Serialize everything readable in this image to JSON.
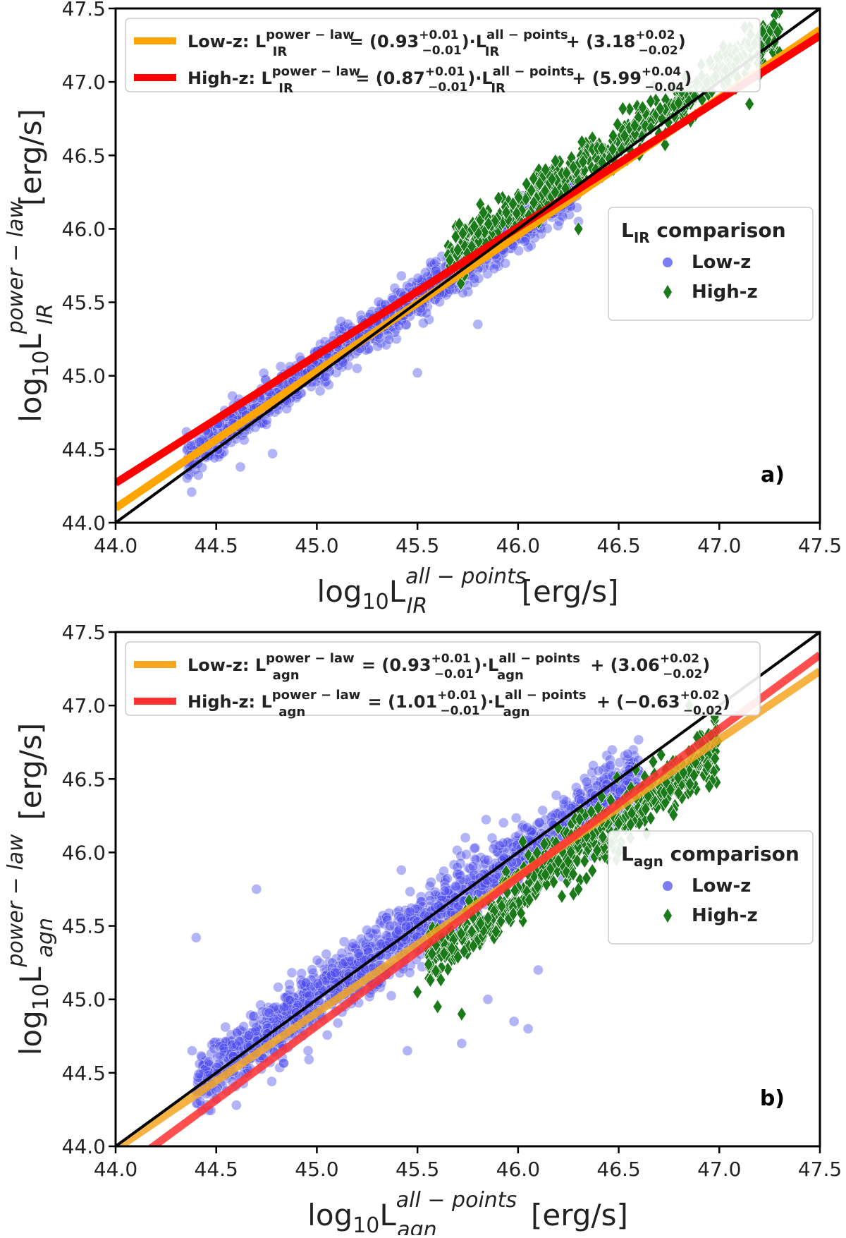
{
  "chart_data": [
    {
      "type": "scatter",
      "panel_label": "a)",
      "xlabel": {
        "base": "log",
        "sub": "10",
        "L": "L",
        "sup": "all − points",
        "var": "IR",
        "unit": "[erg/s]"
      },
      "ylabel": {
        "base": "log",
        "sub": "10",
        "L": "L",
        "sup": "power − law",
        "var": "IR",
        "unit": "[erg/s]"
      },
      "xlim": [
        44.0,
        47.5
      ],
      "ylim": [
        44.0,
        47.5
      ],
      "xticks": [
        "44.0",
        "44.5",
        "45.0",
        "45.5",
        "46.0",
        "46.5",
        "47.0",
        "47.5"
      ],
      "yticks": [
        "44.0",
        "44.5",
        "45.0",
        "45.5",
        "46.0",
        "46.5",
        "47.0",
        "47.5"
      ],
      "grid": false,
      "fit_legend": [
        {
          "name": "Low-z",
          "color": "#ffa500",
          "label_prefix": "Low-z: L",
          "label_sup": "power − law",
          "label_sub": "IR",
          "label_mid": " = (0.93",
          "slope_err_up": "+0.01",
          "slope_err_down": "−0.01",
          "label_mid2": ")·L",
          "label_sup2": "all − points",
          "label_sub2": "IR",
          "label_tail": " + (3.18",
          "int_err_up": "+0.02",
          "int_err_down": "−0.02",
          "label_end": ")",
          "slope": 0.93,
          "intercept": 3.18
        },
        {
          "name": "High-z",
          "color": "#ff0000",
          "label_prefix": "High-z: L",
          "label_sup": "power − law",
          "label_sub": "IR",
          "label_mid": " = (0.87",
          "slope_err_up": "+0.01",
          "slope_err_down": "−0.01",
          "label_mid2": ")·L",
          "label_sup2": "all − points",
          "label_sub2": "IR",
          "label_tail": " + (5.99",
          "int_err_up": "+0.04",
          "int_err_down": "−0.04",
          "label_end": ")",
          "slope": 0.87,
          "intercept": 5.99
        }
      ],
      "one_to_one": {
        "color": "#000000"
      },
      "point_legend": {
        "title_L": "L",
        "title_sub": "IR",
        "title_rest": " comparison",
        "placement": "center-right",
        "entries": [
          {
            "name": "Low-z",
            "marker": "circle",
            "color": "#4444ee"
          },
          {
            "name": "High-z",
            "marker": "diamond",
            "color": "#1a7a1a"
          }
        ]
      },
      "series": [
        {
          "name": "Low-z",
          "marker": "circle",
          "color": "#4a4aee",
          "count": 1400,
          "x_range": [
            44.35,
            46.3
          ],
          "relation": {
            "slope": 0.96,
            "intercept": 1.85
          },
          "scatter_sd": 0.07,
          "outliers": [
            [
              45.42,
              45.68
            ],
            [
              45.12,
              45.37
            ],
            [
              44.78,
              44.47
            ],
            [
              45.8,
              45.35
            ],
            [
              45.5,
              45.02
            ],
            [
              44.62,
              44.38
            ],
            [
              46.3,
              46.05
            ],
            [
              45.2,
              45.05
            ]
          ]
        },
        {
          "name": "High-z",
          "marker": "diamond",
          "color": "#1a7a1a",
          "count": 520,
          "x_range": [
            45.65,
            47.3
          ],
          "relation": {
            "slope": 0.9,
            "intercept": 4.75
          },
          "scatter_sd": 0.08,
          "outliers": [
            [
              47.15,
              46.85
            ],
            [
              47.3,
              47.2
            ],
            [
              46.3,
              46.0
            ]
          ]
        }
      ]
    },
    {
      "type": "scatter",
      "panel_label": "b)",
      "xlabel": {
        "base": "log",
        "sub": "10",
        "L": "L",
        "sup": "all − points",
        "var": "agn",
        "unit": "[erg/s]"
      },
      "ylabel": {
        "base": "log",
        "sub": "10",
        "L": "L",
        "sup": "power − law",
        "var": "agn",
        "unit": "[erg/s]"
      },
      "xlim": [
        44.0,
        47.5
      ],
      "ylim": [
        44.0,
        47.5
      ],
      "xticks": [
        "44.0",
        "44.5",
        "45.0",
        "45.5",
        "46.0",
        "46.5",
        "47.0",
        "47.5"
      ],
      "yticks": [
        "44.0",
        "44.5",
        "45.0",
        "45.5",
        "46.0",
        "46.5",
        "47.0",
        "47.5"
      ],
      "grid": false,
      "fit_legend": [
        {
          "name": "Low-z",
          "color": "#f5a623",
          "label_prefix": "Low-z: L",
          "label_sup": "power − law",
          "label_sub": "agn",
          "label_mid": " = (0.93",
          "slope_err_up": "+0.01",
          "slope_err_down": "−0.01",
          "label_mid2": ")·L",
          "label_sup2": "all − points",
          "label_sub2": "agn",
          "label_tail": " + (3.06",
          "int_err_up": "+0.02",
          "int_err_down": "−0.02",
          "label_end": ")",
          "slope": 0.93,
          "intercept": 3.06
        },
        {
          "name": "High-z",
          "color": "#ff3030",
          "label_prefix": "High-z: L",
          "label_sup": "power − law",
          "label_sub": "agn",
          "label_mid": " = (1.01",
          "slope_err_up": "+0.01",
          "slope_err_down": "−0.01",
          "label_mid2": ")·L",
          "label_sup2": "all − points",
          "label_sub2": "agn",
          "label_tail": " + (−0.63",
          "int_err_up": "+0.02",
          "int_err_down": "−0.02",
          "label_end": ")",
          "slope": 1.01,
          "intercept": -0.63
        }
      ],
      "one_to_one": {
        "color": "#000000"
      },
      "point_legend": {
        "title_L": "L",
        "title_sub": "agn",
        "title_rest": " comparison",
        "placement": "center-right",
        "entries": [
          {
            "name": "Low-z",
            "marker": "circle",
            "color": "#4444ee"
          },
          {
            "name": "High-z",
            "marker": "diamond",
            "color": "#1a7a1a"
          }
        ]
      },
      "series": [
        {
          "name": "Low-z",
          "marker": "circle",
          "color": "#4a4aee",
          "count": 1700,
          "x_range": [
            44.4,
            46.6
          ],
          "relation": {
            "slope": 0.96,
            "intercept": 1.8
          },
          "scatter_sd": 0.11,
          "outliers": [
            [
              44.4,
              45.42
            ],
            [
              44.7,
              45.75
            ],
            [
              45.42,
              45.88
            ],
            [
              44.38,
              44.65
            ],
            [
              45.98,
              44.85
            ],
            [
              46.05,
              44.8
            ],
            [
              46.1,
              45.2
            ],
            [
              45.85,
              45.0
            ],
            [
              45.72,
              44.7
            ],
            [
              45.45,
              44.65
            ],
            [
              44.6,
              44.28
            ],
            [
              45.18,
              45.38
            ]
          ]
        },
        {
          "name": "High-z",
          "marker": "diamond",
          "color": "#1a7a1a",
          "count": 620,
          "x_range": [
            45.55,
            47.0
          ],
          "relation": {
            "slope": 1.0,
            "intercept": -0.28
          },
          "scatter_sd": 0.1,
          "outliers": [
            [
              45.6,
              44.95
            ],
            [
              45.72,
              44.9
            ],
            [
              45.5,
              45.05
            ],
            [
              46.95,
              46.45
            ],
            [
              46.5,
              46.0
            ],
            [
              46.85,
              47.0
            ],
            [
              46.3,
              45.75
            ]
          ]
        }
      ]
    }
  ]
}
